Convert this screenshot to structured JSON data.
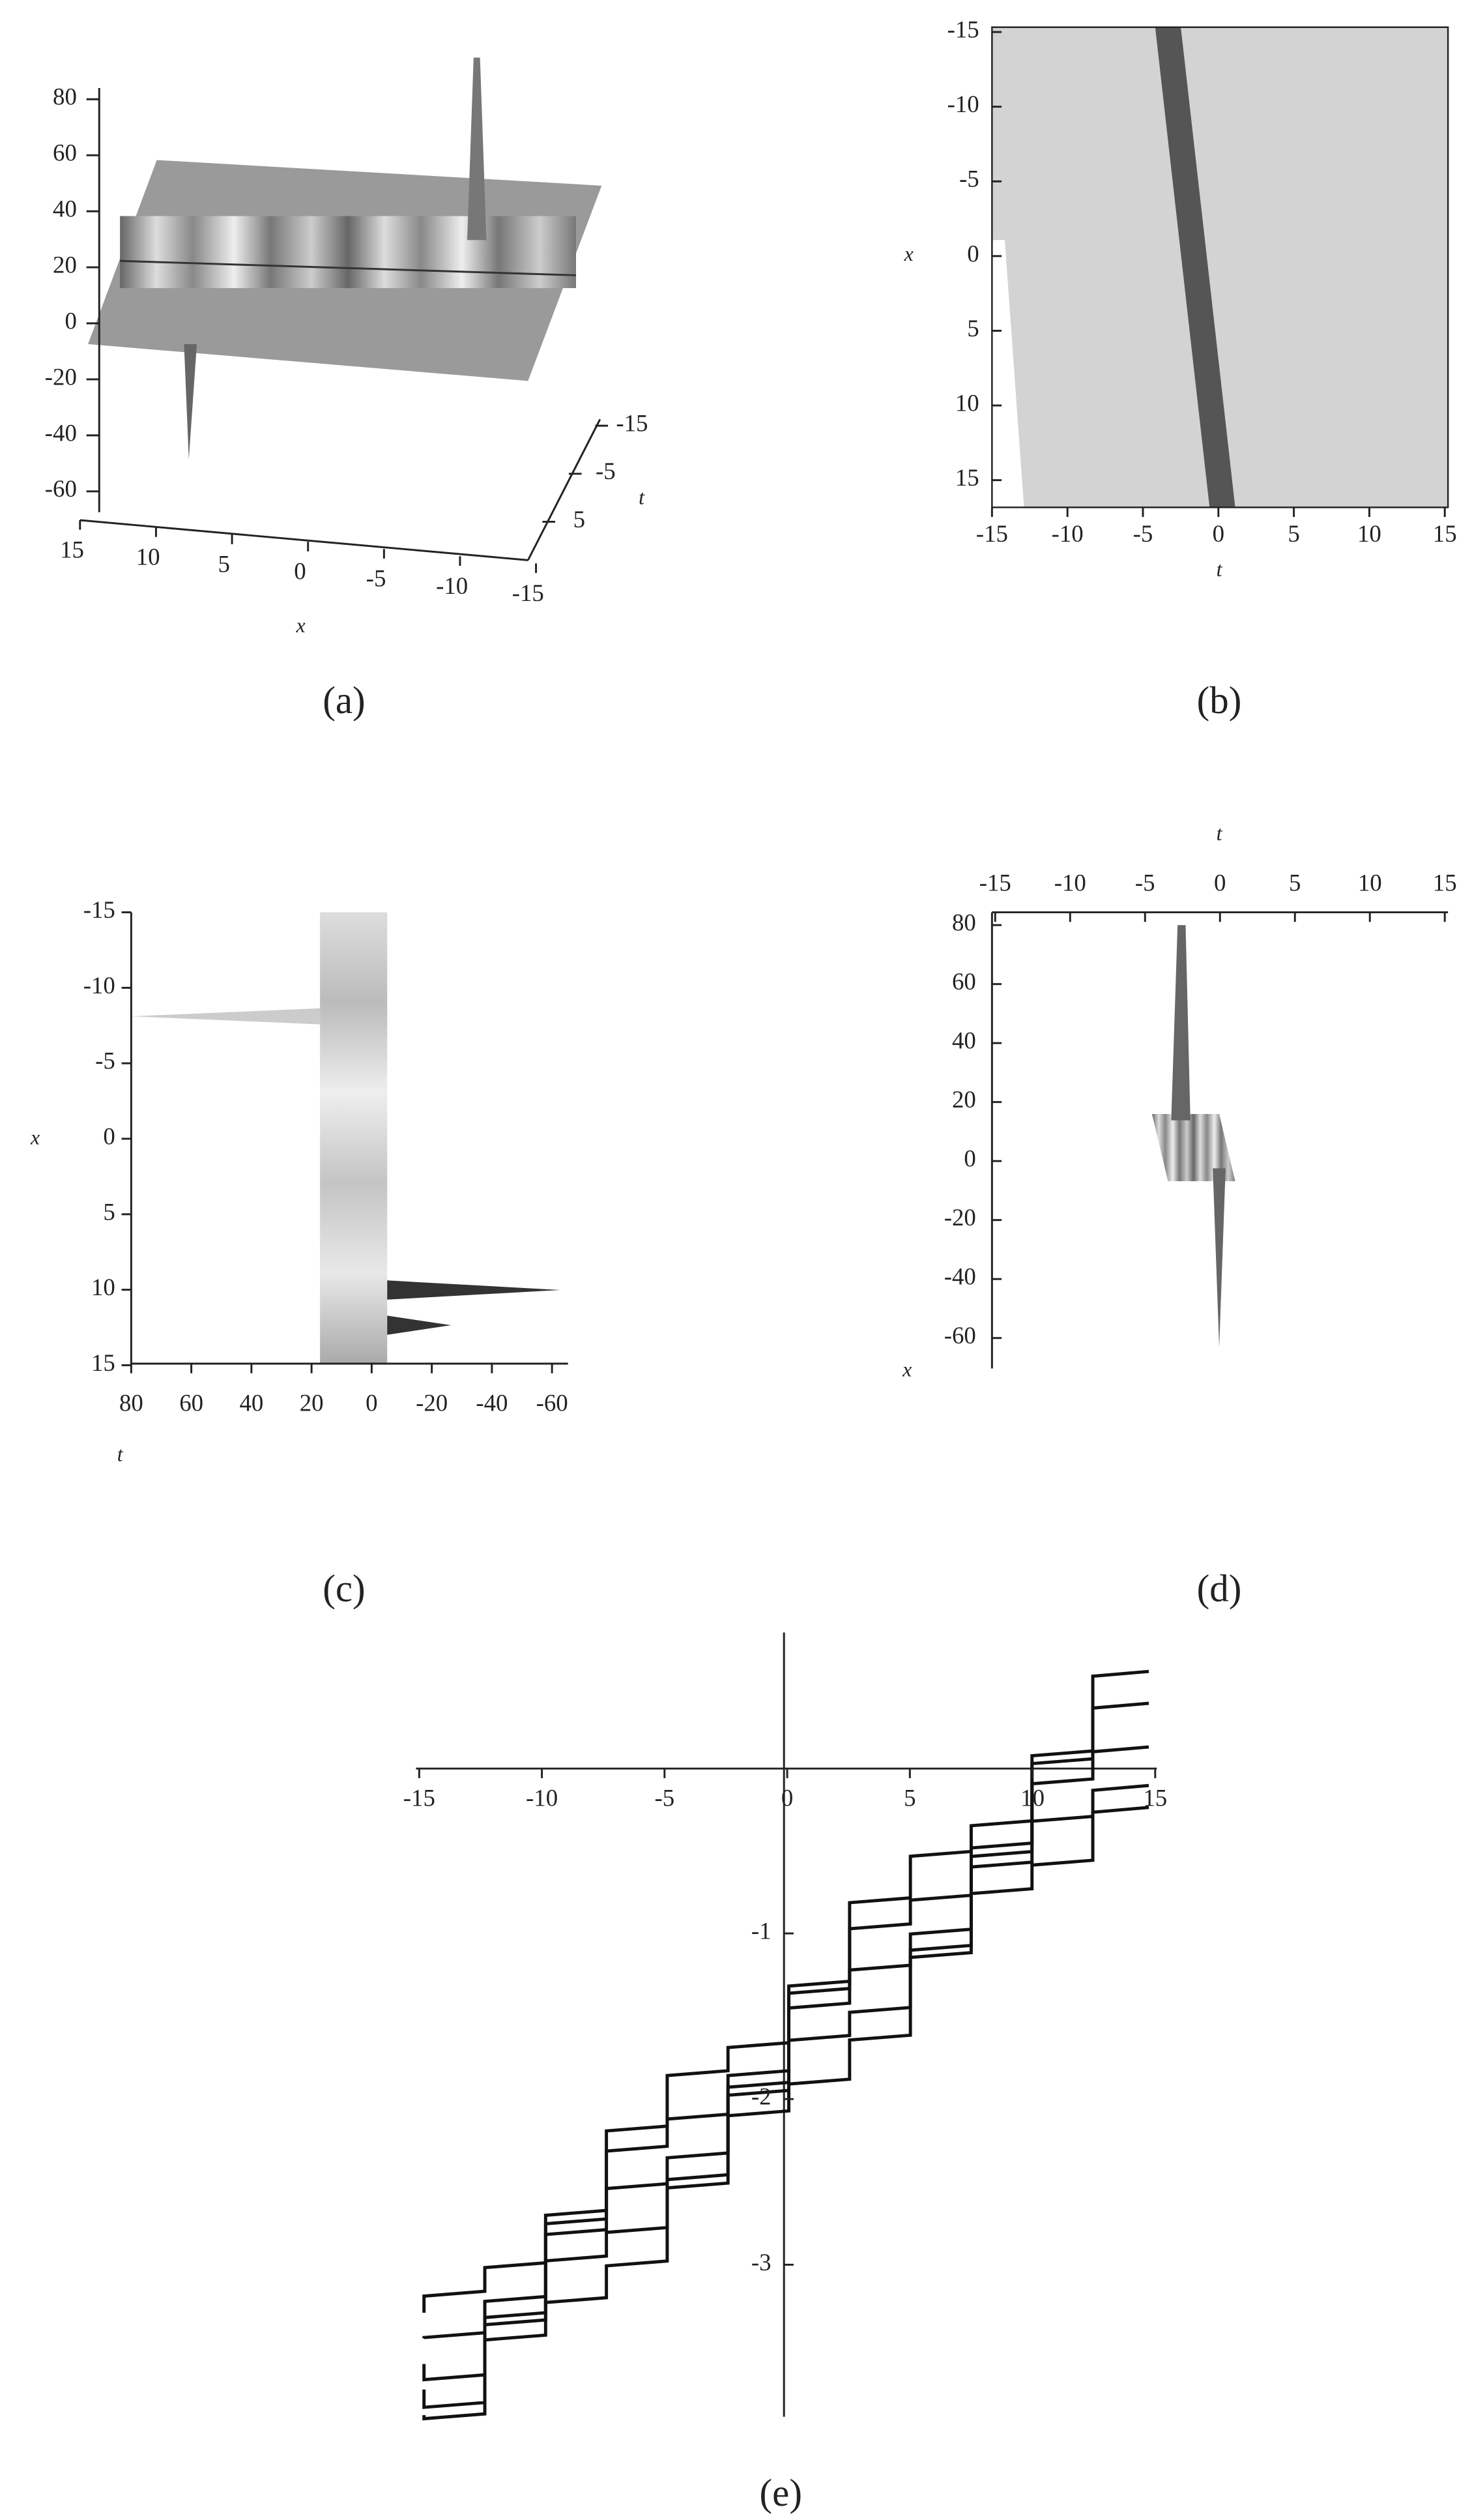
{
  "panels": {
    "a": {
      "label": "(a)",
      "x_label": "x",
      "t_label": "t",
      "z_ticks": [
        "80",
        "60",
        "40",
        "20",
        "0",
        "-20",
        "-40",
        "-60"
      ],
      "x_ticks": [
        "15",
        "10",
        "5",
        "0",
        "-5",
        "-10",
        "-15"
      ],
      "t_ticks": [
        "-15",
        "-5",
        "5"
      ]
    },
    "b": {
      "label": "(b)",
      "x_label": "x",
      "t_label": "t",
      "x_ticks": [
        "-15",
        "-10",
        "-5",
        "0",
        "5",
        "10",
        "15"
      ],
      "t_ticks": [
        "-15",
        "-10",
        "-5",
        "0",
        "5",
        "10",
        "15"
      ]
    },
    "c": {
      "label": "(c)",
      "x_label": "x",
      "t_label": "t",
      "x_ticks": [
        "-15",
        "-10",
        "-5",
        "0",
        "5",
        "10",
        "15"
      ],
      "t_ticks": [
        "80",
        "60",
        "40",
        "20",
        "0",
        "-20",
        "-40",
        "-60"
      ]
    },
    "d": {
      "label": "(d)",
      "x_label": "x",
      "t_label": "t",
      "t_ticks": [
        "-15",
        "-10",
        "-5",
        "0",
        "5",
        "10",
        "15"
      ],
      "z_ticks": [
        "80",
        "60",
        "40",
        "20",
        "0",
        "-20",
        "-40",
        "-60"
      ]
    },
    "e": {
      "label": "(e)",
      "x_ticks": [
        "-15",
        "-10",
        "-5",
        "0",
        "5",
        "10",
        "15"
      ],
      "y_ticks": [
        "-1",
        "-2",
        "-3"
      ]
    }
  }
}
